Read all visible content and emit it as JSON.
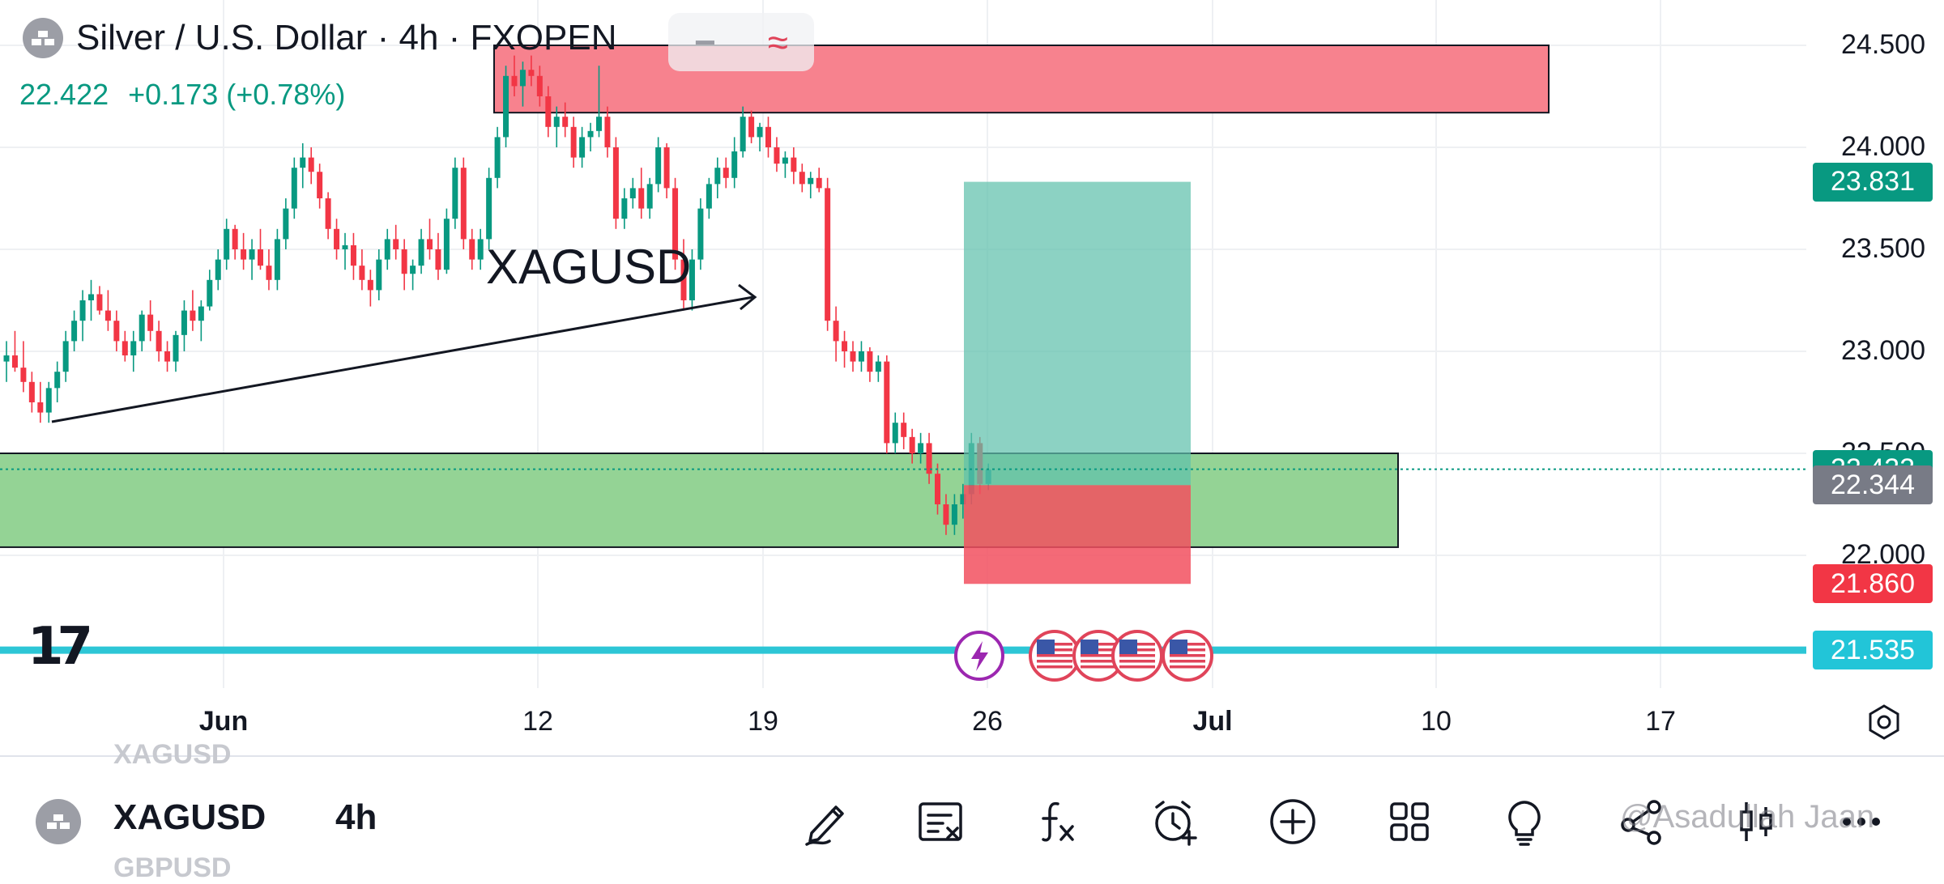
{
  "header": {
    "title": "Silver / U.S. Dollar · 4h · FXOPEN",
    "price": "22.422",
    "change": "+0.173 (+0.78%)",
    "minus_glyph": "−",
    "indicator_glyph": "≈"
  },
  "annotation_text": "XAGUSD",
  "logo_text": "17",
  "price_axis": {
    "labels": [
      "24.500",
      "24.000",
      "23.500",
      "23.000",
      "22.500",
      "22.000"
    ]
  },
  "price_tags": [
    {
      "label": "23.831",
      "color": "#089981"
    },
    {
      "label": "22.422",
      "color": "#089981"
    },
    {
      "label": "22.344",
      "color": "#787b86"
    },
    {
      "label": "21.860",
      "color": "#f23645"
    },
    {
      "label": "21.535",
      "color": "#22c5d8"
    }
  ],
  "time_axis": {
    "labels": [
      "Jun",
      "12",
      "19",
      "26",
      "Jul",
      "10",
      "17"
    ]
  },
  "colors": {
    "up": "#089981",
    "down": "#f23645",
    "supply_zone": "#f7828e",
    "demand_zone": "#94d395",
    "target": "#5fc1ac",
    "stop": "#f2505f",
    "hline": "#2dc6d6"
  },
  "chart_data": {
    "type": "candlestick",
    "symbol": "XAGUSD",
    "interval": "4h",
    "ylim": [
      21.4,
      24.7
    ],
    "xlabel": "",
    "ylabel": "",
    "last_price": 22.422,
    "candles": [
      [
        22.95,
        23.05,
        22.85,
        22.98
      ],
      [
        22.98,
        23.1,
        22.9,
        22.92
      ],
      [
        22.92,
        23.05,
        22.8,
        22.85
      ],
      [
        22.85,
        22.9,
        22.7,
        22.75
      ],
      [
        22.75,
        22.85,
        22.65,
        22.7
      ],
      [
        22.7,
        22.85,
        22.65,
        22.82
      ],
      [
        22.82,
        22.95,
        22.75,
        22.9
      ],
      [
        22.9,
        23.1,
        22.85,
        23.05
      ],
      [
        23.05,
        23.2,
        23.0,
        23.15
      ],
      [
        23.15,
        23.3,
        23.05,
        23.25
      ],
      [
        23.25,
        23.35,
        23.15,
        23.28
      ],
      [
        23.28,
        23.32,
        23.18,
        23.2
      ],
      [
        23.2,
        23.3,
        23.1,
        23.15
      ],
      [
        23.15,
        23.2,
        23.0,
        23.05
      ],
      [
        23.05,
        23.1,
        22.95,
        22.98
      ],
      [
        22.98,
        23.1,
        22.9,
        23.05
      ],
      [
        23.05,
        23.2,
        23.0,
        23.18
      ],
      [
        23.18,
        23.25,
        23.05,
        23.1
      ],
      [
        23.1,
        23.15,
        22.95,
        23.0
      ],
      [
        23.0,
        23.05,
        22.9,
        22.95
      ],
      [
        22.95,
        23.1,
        22.9,
        23.08
      ],
      [
        23.08,
        23.25,
        23.0,
        23.2
      ],
      [
        23.2,
        23.3,
        23.1,
        23.15
      ],
      [
        23.15,
        23.25,
        23.05,
        23.22
      ],
      [
        23.22,
        23.4,
        23.2,
        23.35
      ],
      [
        23.35,
        23.5,
        23.3,
        23.45
      ],
      [
        23.45,
        23.65,
        23.4,
        23.6
      ],
      [
        23.6,
        23.62,
        23.45,
        23.5
      ],
      [
        23.5,
        23.58,
        23.4,
        23.45
      ],
      [
        23.45,
        23.55,
        23.35,
        23.5
      ],
      [
        23.5,
        23.6,
        23.4,
        23.42
      ],
      [
        23.42,
        23.5,
        23.3,
        23.35
      ],
      [
        23.35,
        23.6,
        23.3,
        23.55
      ],
      [
        23.55,
        23.75,
        23.5,
        23.7
      ],
      [
        23.7,
        23.95,
        23.65,
        23.9
      ],
      [
        23.9,
        24.02,
        23.8,
        23.95
      ],
      [
        23.95,
        24.0,
        23.82,
        23.88
      ],
      [
        23.88,
        23.92,
        23.7,
        23.75
      ],
      [
        23.75,
        23.78,
        23.55,
        23.6
      ],
      [
        23.6,
        23.65,
        23.45,
        23.5
      ],
      [
        23.5,
        23.58,
        23.4,
        23.52
      ],
      [
        23.52,
        23.58,
        23.35,
        23.42
      ],
      [
        23.42,
        23.5,
        23.3,
        23.35
      ],
      [
        23.35,
        23.4,
        23.22,
        23.3
      ],
      [
        23.3,
        23.5,
        23.25,
        23.45
      ],
      [
        23.45,
        23.6,
        23.4,
        23.55
      ],
      [
        23.55,
        23.62,
        23.45,
        23.5
      ],
      [
        23.5,
        23.55,
        23.3,
        23.38
      ],
      [
        23.38,
        23.45,
        23.3,
        23.42
      ],
      [
        23.42,
        23.6,
        23.38,
        23.55
      ],
      [
        23.55,
        23.65,
        23.45,
        23.5
      ],
      [
        23.5,
        23.58,
        23.35,
        23.4
      ],
      [
        23.4,
        23.7,
        23.38,
        23.65
      ],
      [
        23.65,
        23.95,
        23.6,
        23.9
      ],
      [
        23.9,
        23.95,
        23.5,
        23.55
      ],
      [
        23.55,
        23.6,
        23.4,
        23.45
      ],
      [
        23.45,
        23.6,
        23.4,
        23.55
      ],
      [
        23.55,
        23.9,
        23.5,
        23.85
      ],
      [
        23.85,
        24.1,
        23.8,
        24.05
      ],
      [
        24.05,
        24.4,
        24.0,
        24.35
      ],
      [
        24.35,
        24.45,
        24.25,
        24.3
      ],
      [
        24.3,
        24.42,
        24.2,
        24.38
      ],
      [
        24.38,
        24.45,
        24.3,
        24.35
      ],
      [
        24.35,
        24.4,
        24.2,
        24.25
      ],
      [
        24.25,
        24.3,
        24.05,
        24.1
      ],
      [
        24.1,
        24.2,
        24.0,
        24.15
      ],
      [
        24.15,
        24.22,
        24.05,
        24.1
      ],
      [
        24.1,
        24.15,
        23.9,
        23.95
      ],
      [
        23.95,
        24.1,
        23.9,
        24.05
      ],
      [
        24.05,
        24.12,
        23.98,
        24.08
      ],
      [
        24.08,
        24.4,
        24.05,
        24.15
      ],
      [
        24.15,
        24.2,
        23.95,
        24.0
      ],
      [
        24.0,
        24.05,
        23.6,
        23.65
      ],
      [
        23.65,
        23.8,
        23.6,
        23.75
      ],
      [
        23.75,
        23.85,
        23.7,
        23.8
      ],
      [
        23.8,
        23.9,
        23.65,
        23.7
      ],
      [
        23.7,
        23.85,
        23.65,
        23.82
      ],
      [
        23.82,
        24.05,
        23.78,
        24.0
      ],
      [
        24.0,
        24.02,
        23.75,
        23.8
      ],
      [
        23.8,
        23.85,
        23.4,
        23.45
      ],
      [
        23.45,
        23.55,
        23.2,
        23.25
      ],
      [
        23.25,
        23.5,
        23.2,
        23.45
      ],
      [
        23.45,
        23.75,
        23.4,
        23.7
      ],
      [
        23.7,
        23.85,
        23.65,
        23.82
      ],
      [
        23.82,
        23.95,
        23.75,
        23.9
      ],
      [
        23.9,
        23.95,
        23.8,
        23.85
      ],
      [
        23.85,
        24.05,
        23.8,
        23.98
      ],
      [
        23.98,
        24.2,
        23.95,
        24.15
      ],
      [
        24.15,
        24.18,
        24.02,
        24.05
      ],
      [
        24.05,
        24.12,
        23.98,
        24.1
      ],
      [
        24.1,
        24.15,
        23.95,
        24.0
      ],
      [
        24.0,
        24.05,
        23.88,
        23.92
      ],
      [
        23.92,
        23.98,
        23.85,
        23.95
      ],
      [
        23.95,
        24.0,
        23.82,
        23.88
      ],
      [
        23.88,
        23.92,
        23.78,
        23.82
      ],
      [
        23.82,
        23.88,
        23.75,
        23.85
      ],
      [
        23.85,
        23.9,
        23.78,
        23.8
      ],
      [
        23.8,
        23.85,
        23.1,
        23.15
      ],
      [
        23.15,
        23.22,
        22.95,
        23.05
      ],
      [
        23.05,
        23.1,
        22.92,
        23.0
      ],
      [
        23.0,
        23.05,
        22.9,
        22.95
      ],
      [
        22.95,
        23.05,
        22.9,
        23.0
      ],
      [
        23.0,
        23.02,
        22.85,
        22.9
      ],
      [
        22.9,
        22.98,
        22.85,
        22.95
      ],
      [
        22.95,
        22.98,
        22.5,
        22.55
      ],
      [
        22.55,
        22.7,
        22.5,
        22.65
      ],
      [
        22.65,
        22.7,
        22.52,
        22.58
      ],
      [
        22.58,
        22.62,
        22.45,
        22.5
      ],
      [
        22.5,
        22.6,
        22.45,
        22.55
      ],
      [
        22.55,
        22.6,
        22.35,
        22.4
      ],
      [
        22.4,
        22.45,
        22.2,
        22.25
      ],
      [
        22.25,
        22.3,
        22.1,
        22.15
      ],
      [
        22.15,
        22.3,
        22.1,
        22.25
      ],
      [
        22.25,
        22.35,
        22.18,
        22.3
      ],
      [
        22.3,
        22.6,
        22.25,
        22.55
      ],
      [
        22.55,
        22.58,
        22.3,
        22.35
      ],
      [
        22.35,
        22.45,
        22.32,
        22.42
      ]
    ],
    "drawings": {
      "supply_zone": [
        24.17,
        24.5
      ],
      "demand_zone": [
        22.04,
        22.5
      ],
      "long_position": {
        "entry": 22.344,
        "target": 23.831,
        "stop": 21.86
      },
      "horizontal_line": 21.535
    }
  },
  "bottom_bar": {
    "ghost_above": "XAGUSD",
    "ghost_below": "GBPUSD",
    "symbol": "XAGUSD",
    "interval": "4h",
    "watermark": "@Asadullah Jaan"
  }
}
